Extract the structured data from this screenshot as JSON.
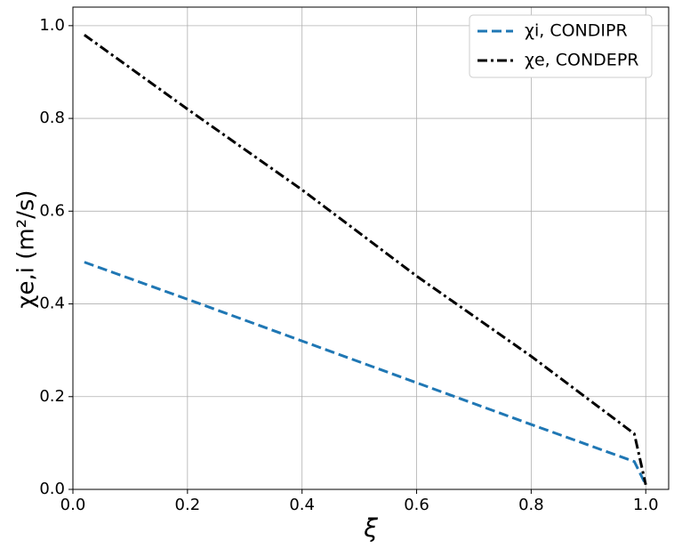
{
  "chart_data": {
    "type": "line",
    "x_label": "ξ",
    "y_label": "χe,i (m²/s)",
    "xlim": [
      0,
      1.04
    ],
    "ylim": [
      0,
      1.04
    ],
    "xticks": [
      {
        "value": 0,
        "label": "0.0"
      },
      0.2,
      0.4,
      0.6,
      0.8,
      {
        "value": 1,
        "label": "1.0"
      }
    ],
    "yticks": [
      {
        "value": 0,
        "label": "0.0"
      },
      0.2,
      0.4,
      0.6,
      0.8,
      {
        "value": 1,
        "label": "1.0"
      }
    ],
    "grid": true,
    "legend": "upper right",
    "series": [
      {
        "name": "χi, CONDIPR",
        "color": "#1f77b4",
        "dash": "dashed",
        "x": [
          0.02,
          0.2,
          0.4,
          0.6,
          0.8,
          0.98,
          1.0
        ],
        "values": [
          0.49,
          0.41,
          0.32,
          0.23,
          0.14,
          0.06,
          0.01
        ]
      },
      {
        "name": "χe, CONDEPR",
        "color": "#000000",
        "dash": "dashdot",
        "x": [
          0.02,
          0.2,
          0.4,
          0.6,
          0.8,
          0.98,
          1.0
        ],
        "values": [
          0.98,
          0.82,
          0.646,
          0.46,
          0.287,
          0.12,
          0.01
        ]
      }
    ]
  }
}
